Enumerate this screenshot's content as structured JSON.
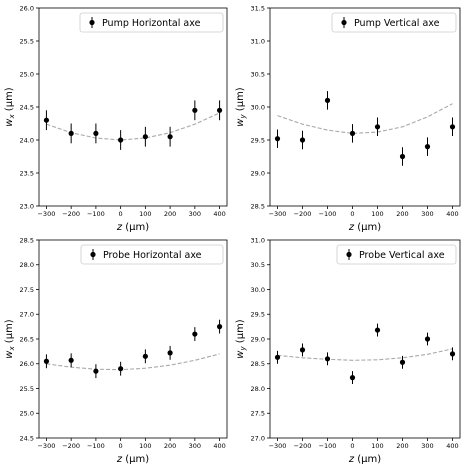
{
  "chart_data": [
    {
      "type": "scatter",
      "legend": "Pump Horizontal axe",
      "legend_position": "upper-right",
      "xlabel": "z (μm)",
      "ylabel": "w_x (μm)",
      "xlim": [
        -330,
        430
      ],
      "ylim": [
        23.0,
        26.0
      ],
      "xticks": [
        "−300",
        "−200",
        "−100",
        "0",
        "100",
        "200",
        "300",
        "400"
      ],
      "yticks": [
        "23.0",
        "23.5",
        "24.0",
        "24.5",
        "25.0",
        "25.5",
        "26.0"
      ],
      "points": [
        {
          "x": -300,
          "y": 24.3,
          "err": 0.15
        },
        {
          "x": -200,
          "y": 24.1,
          "err": 0.15
        },
        {
          "x": -100,
          "y": 24.1,
          "err": 0.15
        },
        {
          "x": 0,
          "y": 24.0,
          "err": 0.15
        },
        {
          "x": 100,
          "y": 24.05,
          "err": 0.15
        },
        {
          "x": 200,
          "y": 24.05,
          "err": 0.15
        },
        {
          "x": 300,
          "y": 24.45,
          "err": 0.15
        },
        {
          "x": 400,
          "y": 24.45,
          "err": 0.15
        }
      ],
      "fit": [
        {
          "x": -300,
          "y": 24.24
        },
        {
          "x": -200,
          "y": 24.11
        },
        {
          "x": -100,
          "y": 24.03
        },
        {
          "x": 0,
          "y": 24.0
        },
        {
          "x": 100,
          "y": 24.03
        },
        {
          "x": 200,
          "y": 24.11
        },
        {
          "x": 300,
          "y": 24.24
        },
        {
          "x": 400,
          "y": 24.41
        }
      ]
    },
    {
      "type": "scatter",
      "legend": "Pump Vertical axe",
      "legend_position": "upper-right",
      "xlabel": "z (μm)",
      "ylabel": "w_y (μm)",
      "xlim": [
        -330,
        430
      ],
      "ylim": [
        28.5,
        31.5
      ],
      "xticks": [
        "−300",
        "−200",
        "−100",
        "0",
        "100",
        "200",
        "300",
        "400"
      ],
      "yticks": [
        "28.5",
        "29.0",
        "29.5",
        "30.0",
        "30.5",
        "31.0",
        "31.5"
      ],
      "points": [
        {
          "x": -300,
          "y": 29.52,
          "err": 0.14
        },
        {
          "x": -200,
          "y": 29.5,
          "err": 0.14
        },
        {
          "x": -100,
          "y": 30.1,
          "err": 0.14
        },
        {
          "x": 0,
          "y": 29.6,
          "err": 0.14
        },
        {
          "x": 100,
          "y": 29.7,
          "err": 0.14
        },
        {
          "x": 200,
          "y": 29.25,
          "err": 0.14
        },
        {
          "x": 300,
          "y": 29.4,
          "err": 0.14
        },
        {
          "x": 400,
          "y": 29.7,
          "err": 0.14
        }
      ],
      "fit": [
        {
          "x": -300,
          "y": 29.87
        },
        {
          "x": -200,
          "y": 29.74
        },
        {
          "x": -100,
          "y": 29.65
        },
        {
          "x": 0,
          "y": 29.6
        },
        {
          "x": 100,
          "y": 29.62
        },
        {
          "x": 200,
          "y": 29.7
        },
        {
          "x": 300,
          "y": 29.85
        },
        {
          "x": 400,
          "y": 30.05
        }
      ]
    },
    {
      "type": "scatter",
      "legend": "Probe Horizontal axe",
      "legend_position": "upper-right",
      "xlabel": "z (μm)",
      "ylabel": "w_x (μm)",
      "xlim": [
        -330,
        430
      ],
      "ylim": [
        24.5,
        28.5
      ],
      "xticks": [
        "−300",
        "−200",
        "−100",
        "0",
        "100",
        "200",
        "300",
        "400"
      ],
      "yticks": [
        "24.5",
        "25.0",
        "25.5",
        "26.0",
        "26.5",
        "27.0",
        "27.5",
        "28.0",
        "28.5"
      ],
      "points": [
        {
          "x": -300,
          "y": 26.05,
          "err": 0.14
        },
        {
          "x": -200,
          "y": 26.07,
          "err": 0.14
        },
        {
          "x": -100,
          "y": 25.85,
          "err": 0.14
        },
        {
          "x": 0,
          "y": 25.9,
          "err": 0.14
        },
        {
          "x": 100,
          "y": 26.15,
          "err": 0.14
        },
        {
          "x": 200,
          "y": 26.22,
          "err": 0.14
        },
        {
          "x": 300,
          "y": 26.6,
          "err": 0.14
        },
        {
          "x": 400,
          "y": 26.75,
          "err": 0.14
        }
      ],
      "fit": [
        {
          "x": -300,
          "y": 26.0
        },
        {
          "x": -200,
          "y": 25.93
        },
        {
          "x": -100,
          "y": 25.89
        },
        {
          "x": 0,
          "y": 25.88
        },
        {
          "x": 100,
          "y": 25.91
        },
        {
          "x": 200,
          "y": 25.97
        },
        {
          "x": 300,
          "y": 26.07
        },
        {
          "x": 400,
          "y": 26.2
        }
      ]
    },
    {
      "type": "scatter",
      "legend": "Probe Vertical axe",
      "legend_position": "upper-right",
      "xlabel": "z (μm)",
      "ylabel": "w_y (μm)",
      "xlim": [
        -330,
        430
      ],
      "ylim": [
        27.0,
        31.0
      ],
      "xticks": [
        "−300",
        "−200",
        "−100",
        "0",
        "100",
        "200",
        "300",
        "400"
      ],
      "yticks": [
        "27.0",
        "27.5",
        "28.0",
        "28.5",
        "29.0",
        "29.5",
        "30.0",
        "30.5",
        "31.0"
      ],
      "points": [
        {
          "x": -300,
          "y": 28.63,
          "err": 0.13
        },
        {
          "x": -200,
          "y": 28.78,
          "err": 0.13
        },
        {
          "x": -100,
          "y": 28.6,
          "err": 0.13
        },
        {
          "x": 0,
          "y": 28.22,
          "err": 0.13
        },
        {
          "x": 100,
          "y": 29.18,
          "err": 0.13
        },
        {
          "x": 200,
          "y": 28.53,
          "err": 0.13
        },
        {
          "x": 300,
          "y": 29.0,
          "err": 0.13
        },
        {
          "x": 400,
          "y": 28.7,
          "err": 0.13
        }
      ],
      "fit": [
        {
          "x": -300,
          "y": 28.67
        },
        {
          "x": -200,
          "y": 28.62
        },
        {
          "x": -100,
          "y": 28.59
        },
        {
          "x": 0,
          "y": 28.57
        },
        {
          "x": 100,
          "y": 28.58
        },
        {
          "x": 200,
          "y": 28.62
        },
        {
          "x": 300,
          "y": 28.69
        },
        {
          "x": 400,
          "y": 28.8
        }
      ]
    }
  ],
  "colors": {
    "marker": "#000000",
    "fit_line": "#a9a9a9",
    "axes": "#000000",
    "legend_border": "#cccccc"
  }
}
